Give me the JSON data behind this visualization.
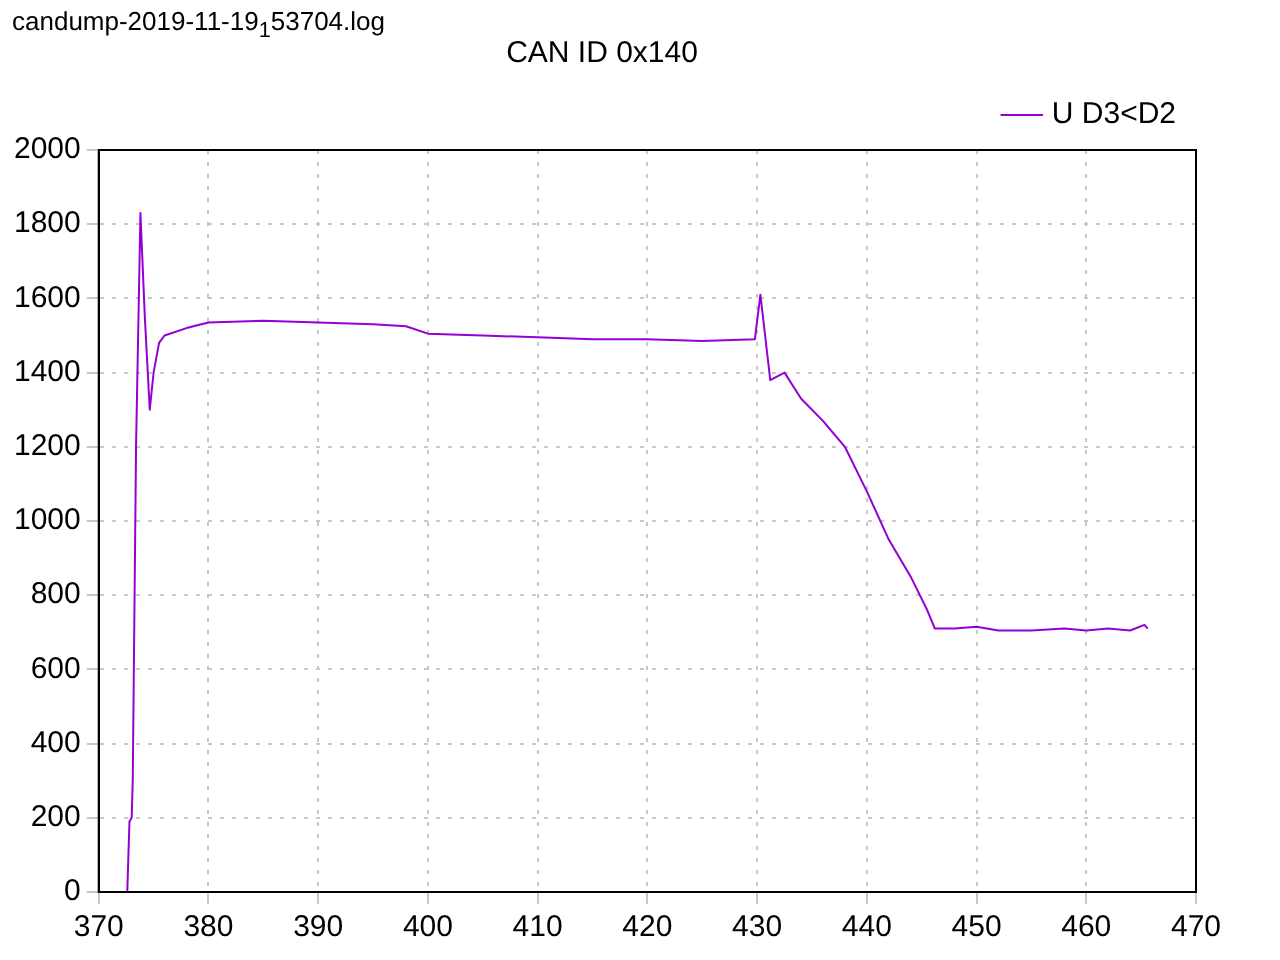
{
  "chart_data": {
    "type": "line",
    "title": "CAN ID 0x140",
    "annotations": [
      "candump-2019-11-19$_{1}$53704.log"
    ],
    "x": [
      372.6,
      372.8,
      373.0,
      373.1,
      373.4,
      373.8,
      374.2,
      374.65,
      375.0,
      375.5,
      376,
      378,
      380,
      385,
      390,
      395,
      398,
      400,
      405,
      410,
      415,
      420,
      425,
      429.8,
      430.3,
      431.2,
      432.5,
      434,
      436,
      438,
      440,
      442,
      444,
      445.5,
      446.2,
      448,
      450,
      452,
      455,
      458,
      460,
      462,
      464,
      465.3,
      465.6
    ],
    "series": [
      {
        "name": "U D3<D2",
        "color": "#9400d3",
        "values": [
          0,
          190,
          200,
          300,
          1200,
          1830,
          1550,
          1300,
          1400,
          1480,
          1500,
          1520,
          1535,
          1540,
          1535,
          1530,
          1525,
          1505,
          1500,
          1495,
          1490,
          1490,
          1485,
          1490,
          1610,
          1380,
          1400,
          1330,
          1270,
          1200,
          1080,
          950,
          850,
          760,
          710,
          710,
          715,
          705,
          705,
          710,
          705,
          710,
          705,
          720,
          710
        ]
      }
    ],
    "xlim": [
      370,
      470
    ],
    "xticks": [
      370,
      380,
      390,
      400,
      410,
      420,
      430,
      440,
      450,
      460,
      470
    ],
    "ylim": [
      0,
      2000
    ],
    "yticks": [
      0,
      200,
      400,
      600,
      800,
      1000,
      1200,
      1400,
      1600,
      1800,
      2000
    ],
    "grid": true,
    "legend": "top right",
    "marker": "none",
    "line_style": "solid"
  }
}
